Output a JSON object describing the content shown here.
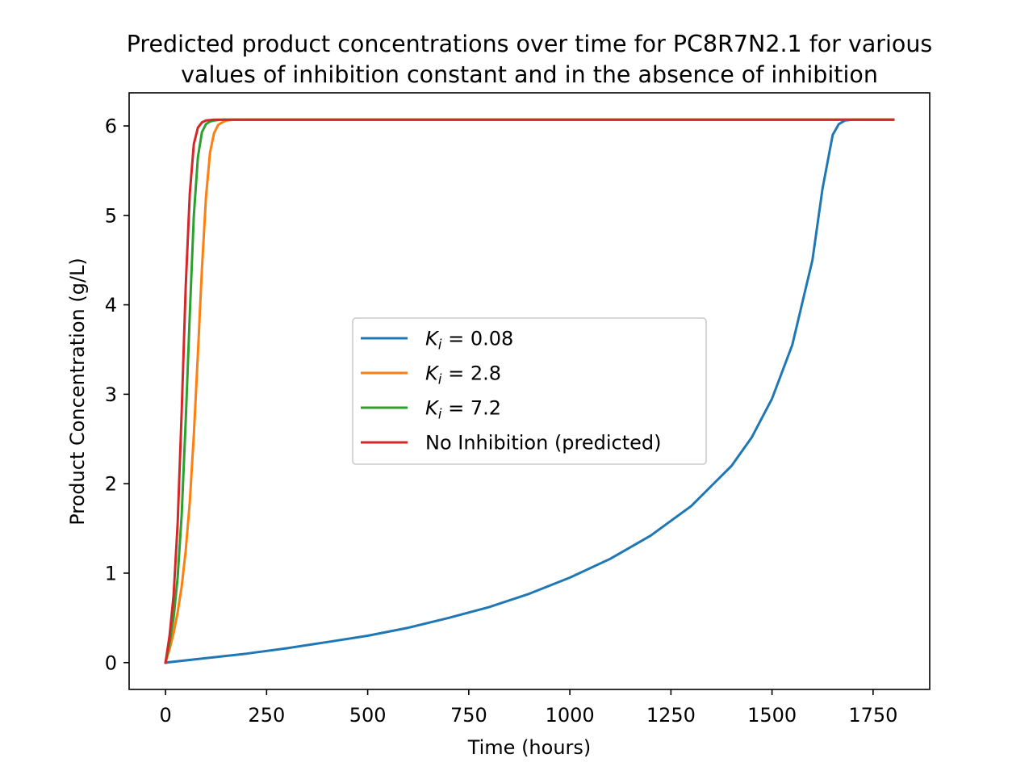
{
  "chart_data": {
    "type": "line",
    "title_line1": "Predicted product concentrations over time for PC8R7N2.1 for various",
    "title_line2": "values of inhibition constant and in the absence of inhibition",
    "xlabel": "Time (hours)",
    "ylabel": "Product Concentration (g/L)",
    "xlim": [
      -90,
      1890
    ],
    "ylim": [
      -0.3,
      6.37
    ],
    "xticks": [
      0,
      250,
      500,
      750,
      1000,
      1250,
      1500,
      1750
    ],
    "yticks": [
      0,
      1,
      2,
      3,
      4,
      5,
      6
    ],
    "grid": false,
    "legend_position": "center",
    "series": [
      {
        "name": "K_i = 0.08",
        "legend_symbol": "K",
        "legend_subscript": "i",
        "legend_value": " = 0.08",
        "color": "#1f77b4",
        "x": [
          0,
          100,
          200,
          300,
          400,
          500,
          600,
          700,
          800,
          900,
          1000,
          1100,
          1200,
          1300,
          1400,
          1450,
          1500,
          1550,
          1600,
          1625,
          1650,
          1665,
          1680,
          1700,
          1750,
          1800
        ],
        "y": [
          0,
          0.05,
          0.1,
          0.16,
          0.23,
          0.3,
          0.39,
          0.5,
          0.62,
          0.77,
          0.95,
          1.16,
          1.42,
          1.75,
          2.2,
          2.52,
          2.95,
          3.55,
          4.5,
          5.3,
          5.9,
          6.02,
          6.06,
          6.07,
          6.07,
          6.07
        ]
      },
      {
        "name": "K_i = 2.8",
        "legend_symbol": "K",
        "legend_subscript": "i",
        "legend_value": " = 2.8",
        "color": "#ff7f0e",
        "x": [
          0,
          10,
          20,
          30,
          40,
          50,
          60,
          70,
          80,
          90,
          100,
          110,
          120,
          130,
          140,
          150,
          170,
          200,
          1800
        ],
        "y": [
          0,
          0.15,
          0.33,
          0.56,
          0.85,
          1.25,
          1.8,
          2.55,
          3.45,
          4.4,
          5.2,
          5.7,
          5.92,
          6.01,
          6.04,
          6.06,
          6.07,
          6.07,
          6.07
        ]
      },
      {
        "name": "K_i = 7.2",
        "legend_symbol": "K",
        "legend_subscript": "i",
        "legend_value": " = 7.2",
        "color": "#2ca02c",
        "x": [
          0,
          10,
          20,
          30,
          40,
          50,
          60,
          70,
          80,
          90,
          100,
          110,
          120,
          140,
          1800
        ],
        "y": [
          0,
          0.22,
          0.5,
          0.95,
          1.65,
          2.7,
          3.9,
          5.0,
          5.65,
          5.93,
          6.02,
          6.05,
          6.06,
          6.07,
          6.07
        ]
      },
      {
        "name": "No Inhibition (predicted)",
        "legend_symbol": "",
        "legend_subscript": "",
        "legend_value": "No Inhibition (predicted)",
        "color": "#d62728",
        "x": [
          0,
          10,
          20,
          30,
          40,
          50,
          60,
          70,
          80,
          90,
          100,
          120,
          1800
        ],
        "y": [
          0,
          0.3,
          0.75,
          1.55,
          2.8,
          4.2,
          5.25,
          5.8,
          5.98,
          6.04,
          6.06,
          6.07,
          6.07
        ]
      }
    ]
  }
}
